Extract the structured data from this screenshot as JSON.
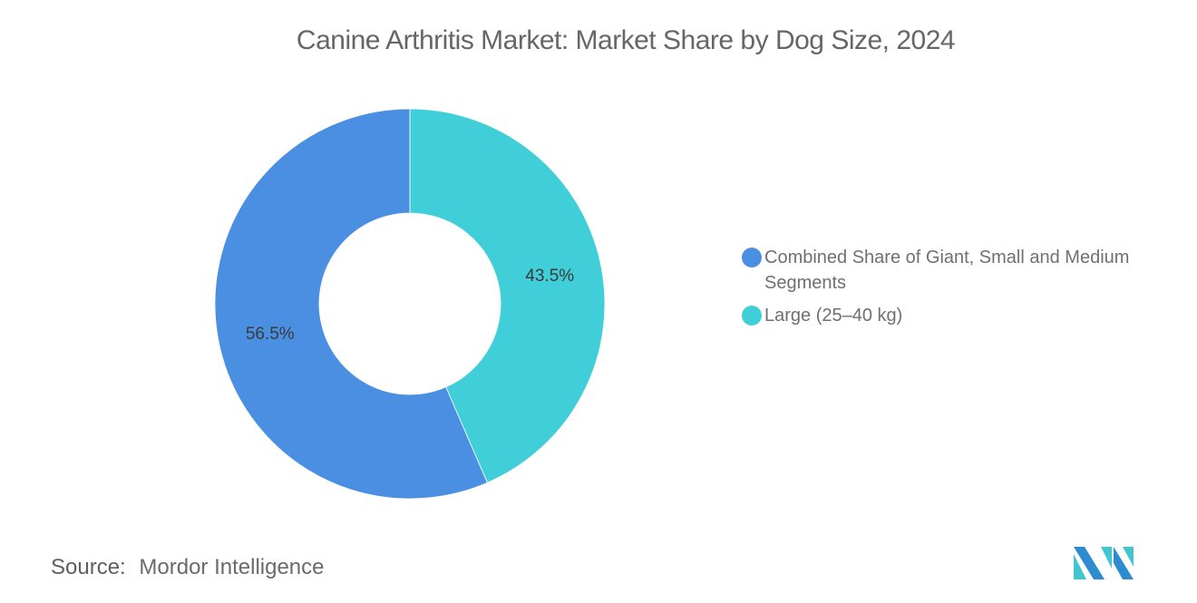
{
  "header": {
    "title": "Canine Arthritis Market: Market Share by Dog Size, 2024"
  },
  "chart_data": {
    "type": "pie",
    "subtype": "donut",
    "title": "Canine Arthritis Market: Market Share by Dog Size, 2024",
    "categories": [
      "Combined Share of Giant, Small and Medium Segments",
      "Large (25–40 kg)"
    ],
    "values": [
      56.5,
      43.5
    ],
    "labels": [
      "56.5%",
      "43.5%"
    ],
    "colors": [
      "#4A8FE2",
      "#40CED8"
    ],
    "legend_position": "right",
    "start_angle_deg": 0,
    "direction": "counterclockwise-from-top for first slice"
  },
  "slices": [
    {
      "label": "56.5%",
      "color": "#4A8FE2"
    },
    {
      "label": "43.5%",
      "color": "#40CED8"
    }
  ],
  "legend": {
    "items": [
      {
        "label": "Combined Share of Giant, Small and Medium Segments",
        "color": "#4A8FE2"
      },
      {
        "label": "Large (25–40 kg)",
        "color": "#40CED8"
      }
    ]
  },
  "footer": {
    "source_key": "Source:",
    "source_value": "Mordor Intelligence"
  },
  "logo": {
    "colors": [
      "#2D8BD0",
      "#3FC6D0"
    ]
  }
}
